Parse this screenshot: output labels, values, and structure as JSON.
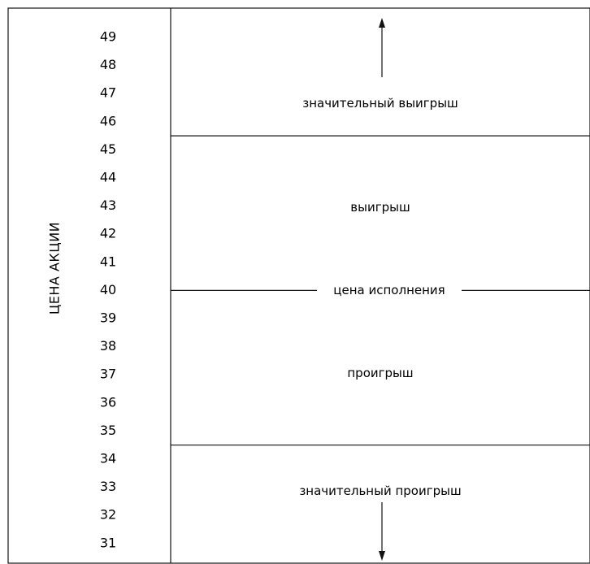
{
  "axis": {
    "title": "ЦЕНА АКЦИИ",
    "ticks": [
      "49",
      "48",
      "47",
      "46",
      "45",
      "44",
      "43",
      "42",
      "41",
      "40",
      "39",
      "38",
      "37",
      "36",
      "35",
      "34",
      "33",
      "32",
      "31"
    ]
  },
  "zones": {
    "big_gain": "значительный выигрыш",
    "gain": "выигрыш",
    "strike": "цена исполнения",
    "loss": "проигрыш",
    "big_loss": "значительный проигрыш"
  },
  "levels": {
    "big_gain_boundary": 45.5,
    "strike_price": 40,
    "big_loss_boundary": 34.5
  }
}
